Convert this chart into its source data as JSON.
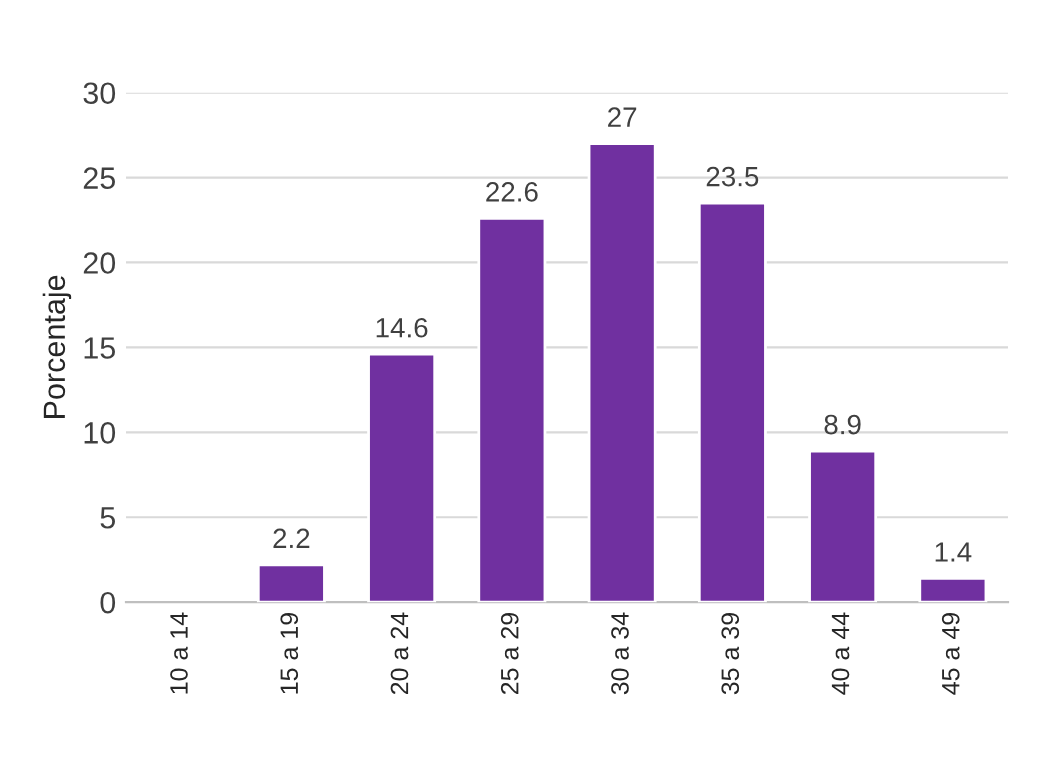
{
  "chart_data": {
    "type": "bar",
    "ylabel": "Porcentaje",
    "categories": [
      "10 a 14",
      "15 a 19",
      "20 a 24",
      "25 a 29",
      "30 a 34",
      "35 a 39",
      "40 a 44",
      "45 a 49"
    ],
    "values": [
      null,
      2.2,
      14.6,
      22.6,
      27,
      23.5,
      8.9,
      1.4
    ],
    "value_labels": [
      null,
      "2.2",
      "14.6",
      "22.6",
      "27",
      "23.5",
      "8.9",
      "1.4"
    ],
    "color": "#7030a0",
    "ylim": [
      0,
      30
    ],
    "yticks": [
      0,
      5,
      10,
      15,
      20,
      25,
      30
    ],
    "grid": "y",
    "legend": false
  }
}
